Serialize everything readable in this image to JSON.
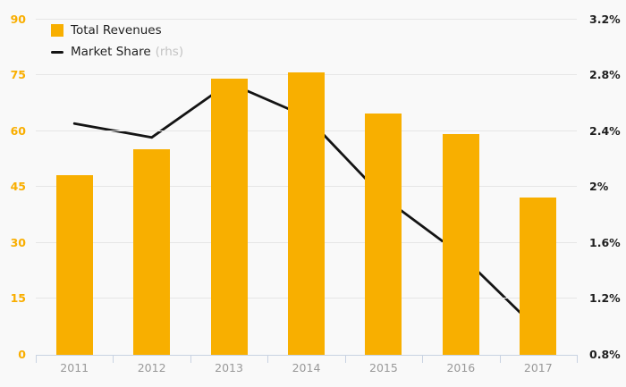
{
  "legend": {
    "items": [
      {
        "label": "Total Revenues",
        "suffix": "",
        "swatch": "square"
      },
      {
        "label": "Market Share",
        "suffix": "(rhs)",
        "swatch": "dash"
      }
    ]
  },
  "chart_data": {
    "type": "combo",
    "categories": [
      "2011",
      "2012",
      "2013",
      "2014",
      "2015",
      "2016",
      "2017"
    ],
    "series": [
      {
        "name": "Total Revenues",
        "type": "bar",
        "axis": "left",
        "color": "#F8AF00",
        "values": [
          48,
          55,
          74,
          75.5,
          64.5,
          59,
          42
        ]
      },
      {
        "name": "Market Share (rhs)",
        "type": "line",
        "axis": "right",
        "color": "#141414",
        "values": [
          2.45,
          2.35,
          2.74,
          2.5,
          1.92,
          1.51,
          0.97
        ]
      }
    ],
    "left_axis": {
      "labels": [
        "0",
        "15",
        "30",
        "45",
        "60",
        "75",
        "90"
      ],
      "min": 0,
      "max": 90,
      "label_color": "#F9AE00"
    },
    "right_axis": {
      "labels": [
        "0.8%",
        "1.2%",
        "1.6%",
        "2%",
        "2.4%",
        "2.8%",
        "3.2%"
      ],
      "min": 0.8,
      "max": 3.2,
      "label_color": "#1f1f1f"
    },
    "x_axis": {
      "label_color": "#999999",
      "line_color": "#c9d3e2"
    },
    "grid": true,
    "legend_position": "top-left",
    "background": "#f9f9f9",
    "title": "",
    "xlabel": "",
    "ylabel": ""
  }
}
